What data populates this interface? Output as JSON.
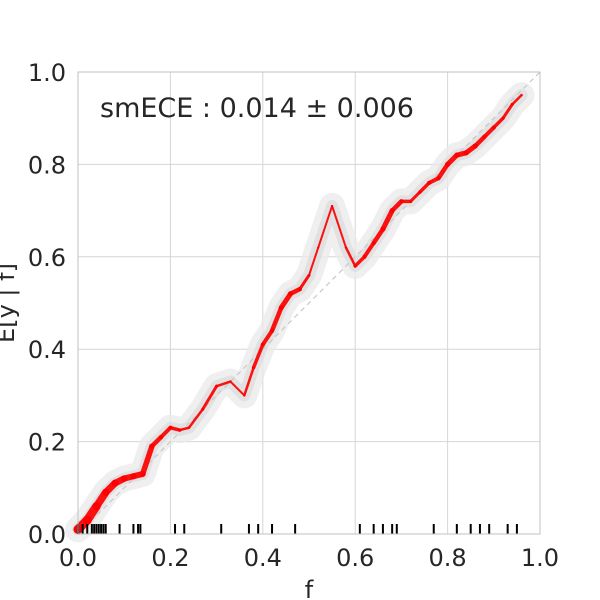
{
  "chart_data": {
    "type": "line",
    "title": "",
    "xlabel": "f",
    "ylabel": "E[y | f]",
    "xlim": [
      0,
      1
    ],
    "ylim": [
      0,
      1
    ],
    "xticks": [
      "0.0",
      "0.2",
      "0.4",
      "0.6",
      "0.8",
      "1.0"
    ],
    "yticks": [
      "0.0",
      "0.2",
      "0.4",
      "0.6",
      "0.8",
      "1.0"
    ],
    "grid": true,
    "annotation": "smECE : 0.014 ± 0.006",
    "reference_line": {
      "x": [
        0,
        1
      ],
      "y": [
        0,
        1
      ],
      "style": "dashed",
      "color": "#c8c8c8"
    },
    "series": [
      {
        "color": "#ff0000",
        "x": [
          0.0,
          0.02,
          0.04,
          0.06,
          0.08,
          0.1,
          0.12,
          0.14,
          0.16,
          0.18,
          0.2,
          0.22,
          0.24,
          0.27,
          0.3,
          0.33,
          0.36,
          0.38,
          0.4,
          0.42,
          0.44,
          0.46,
          0.48,
          0.5,
          0.52,
          0.55,
          0.58,
          0.6,
          0.62,
          0.64,
          0.66,
          0.68,
          0.7,
          0.72,
          0.74,
          0.76,
          0.78,
          0.8,
          0.82,
          0.84,
          0.86,
          0.88,
          0.9,
          0.92,
          0.94,
          0.96
        ],
        "y": [
          0.01,
          0.03,
          0.06,
          0.09,
          0.11,
          0.12,
          0.125,
          0.13,
          0.19,
          0.21,
          0.23,
          0.225,
          0.23,
          0.27,
          0.32,
          0.33,
          0.3,
          0.36,
          0.41,
          0.44,
          0.49,
          0.52,
          0.53,
          0.56,
          0.62,
          0.71,
          0.62,
          0.58,
          0.6,
          0.63,
          0.66,
          0.7,
          0.72,
          0.72,
          0.74,
          0.76,
          0.77,
          0.8,
          0.82,
          0.825,
          0.84,
          0.86,
          0.88,
          0.9,
          0.93,
          0.95
        ],
        "width": [
          9,
          9,
          8,
          7,
          7,
          6,
          6,
          6,
          5,
          4,
          4,
          3,
          2,
          3,
          3,
          2,
          2,
          3,
          4,
          4,
          5,
          5,
          4,
          2,
          2,
          2,
          2,
          3,
          4,
          4,
          5,
          5,
          4,
          3,
          3,
          4,
          4,
          5,
          5,
          5,
          5,
          4,
          4,
          3,
          3,
          2
        ]
      }
    ],
    "rug_ticks": [
      0.0,
      0.01,
      0.02,
      0.03,
      0.035,
      0.04,
      0.045,
      0.05,
      0.055,
      0.06,
      0.09,
      0.12,
      0.13,
      0.135,
      0.21,
      0.23,
      0.31,
      0.37,
      0.39,
      0.42,
      0.47,
      0.61,
      0.64,
      0.66,
      0.68,
      0.69,
      0.77,
      0.82,
      0.85,
      0.87,
      0.89,
      0.93,
      0.95
    ]
  }
}
